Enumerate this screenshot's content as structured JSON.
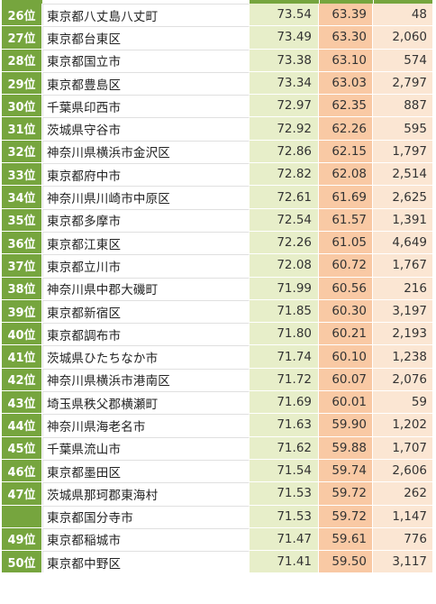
{
  "rows": [
    {
      "rank": "26位",
      "name": "東京都八丈島八丈町",
      "v1": "73.54",
      "v2": "63.39",
      "v3": "48"
    },
    {
      "rank": "27位",
      "name": "東京都台東区",
      "v1": "73.49",
      "v2": "63.30",
      "v3": "2,060"
    },
    {
      "rank": "28位",
      "name": "東京都国立市",
      "v1": "73.38",
      "v2": "63.10",
      "v3": "574"
    },
    {
      "rank": "29位",
      "name": "東京都豊島区",
      "v1": "73.34",
      "v2": "63.03",
      "v3": "2,797"
    },
    {
      "rank": "30位",
      "name": "千葉県印西市",
      "v1": "72.97",
      "v2": "62.35",
      "v3": "887"
    },
    {
      "rank": "31位",
      "name": "茨城県守谷市",
      "v1": "72.92",
      "v2": "62.26",
      "v3": "595"
    },
    {
      "rank": "32位",
      "name": "神奈川県横浜市金沢区",
      "v1": "72.86",
      "v2": "62.15",
      "v3": "1,797"
    },
    {
      "rank": "33位",
      "name": "東京都府中市",
      "v1": "72.82",
      "v2": "62.08",
      "v3": "2,514"
    },
    {
      "rank": "34位",
      "name": "神奈川県川崎市中原区",
      "v1": "72.61",
      "v2": "61.69",
      "v3": "2,625"
    },
    {
      "rank": "35位",
      "name": "東京都多摩市",
      "v1": "72.54",
      "v2": "61.57",
      "v3": "1,391"
    },
    {
      "rank": "36位",
      "name": "東京都江東区",
      "v1": "72.26",
      "v2": "61.05",
      "v3": "4,649"
    },
    {
      "rank": "37位",
      "name": "東京都立川市",
      "v1": "72.08",
      "v2": "60.72",
      "v3": "1,767"
    },
    {
      "rank": "38位",
      "name": "神奈川県中郡大磯町",
      "v1": "71.99",
      "v2": "60.56",
      "v3": "216"
    },
    {
      "rank": "39位",
      "name": "東京都新宿区",
      "v1": "71.85",
      "v2": "60.30",
      "v3": "3,197"
    },
    {
      "rank": "40位",
      "name": "東京都調布市",
      "v1": "71.80",
      "v2": "60.21",
      "v3": "2,193"
    },
    {
      "rank": "41位",
      "name": "茨城県ひたちなか市",
      "v1": "71.74",
      "v2": "60.10",
      "v3": "1,238"
    },
    {
      "rank": "42位",
      "name": "神奈川県横浜市港南区",
      "v1": "71.72",
      "v2": "60.07",
      "v3": "2,076"
    },
    {
      "rank": "43位",
      "name": "埼玉県秩父郡横瀬町",
      "v1": "71.69",
      "v2": "60.01",
      "v3": "59"
    },
    {
      "rank": "44位",
      "name": "神奈川県海老名市",
      "v1": "71.63",
      "v2": "59.90",
      "v3": "1,202"
    },
    {
      "rank": "45位",
      "name": "千葉県流山市",
      "v1": "71.62",
      "v2": "59.88",
      "v3": "1,707"
    },
    {
      "rank": "46位",
      "name": "東京都墨田区",
      "v1": "71.54",
      "v2": "59.74",
      "v3": "2,606"
    },
    {
      "rank": "47位",
      "name": "茨城県那珂郡東海村",
      "v1": "71.53",
      "v2": "59.72",
      "v3": "262"
    },
    {
      "rank": "",
      "name": "東京都国分寺市",
      "v1": "71.53",
      "v2": "59.72",
      "v3": "1,147"
    },
    {
      "rank": "49位",
      "name": "東京都稲城市",
      "v1": "71.47",
      "v2": "59.61",
      "v3": "776"
    },
    {
      "rank": "50位",
      "name": "東京都中野区",
      "v1": "71.41",
      "v2": "59.50",
      "v3": "3,117"
    }
  ]
}
